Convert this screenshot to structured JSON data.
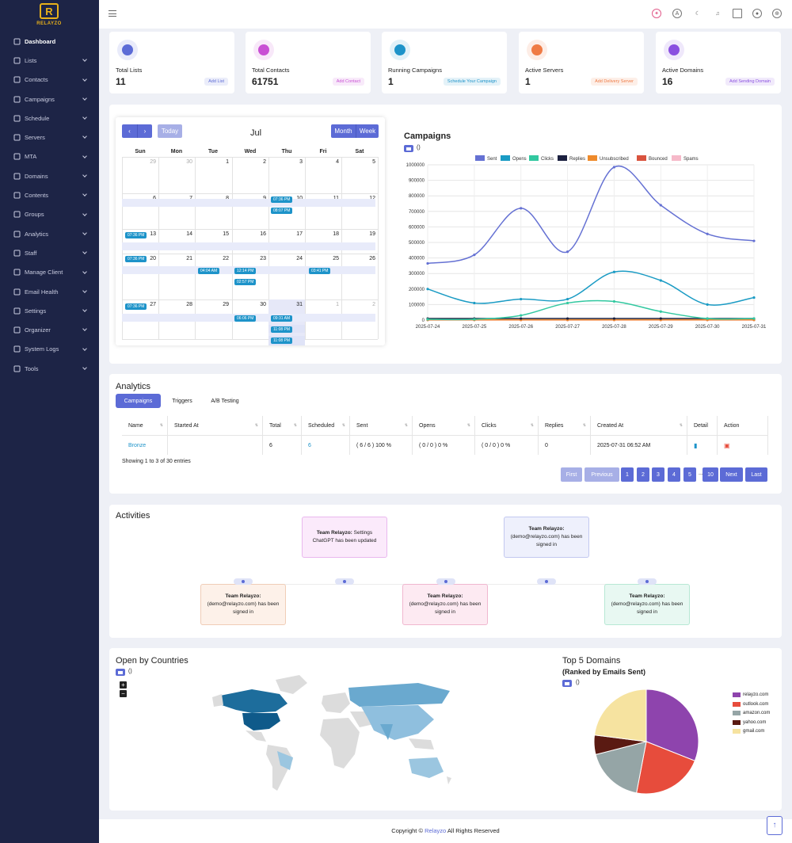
{
  "brand": {
    "logo_letter": "R",
    "name": "RELAYZO",
    "accent": "#5c6bd6"
  },
  "sidebar": {
    "items": [
      {
        "label": "Dashboard",
        "icon": "grid-icon"
      },
      {
        "label": "Lists",
        "icon": "list-icon"
      },
      {
        "label": "Contacts",
        "icon": "contact-card-icon"
      },
      {
        "label": "Campaigns",
        "icon": "send-icon"
      },
      {
        "label": "Schedule",
        "icon": "clock-icon"
      },
      {
        "label": "Servers",
        "icon": "server-icon"
      },
      {
        "label": "MTA",
        "icon": "mta-icon"
      },
      {
        "label": "Domains",
        "icon": "globe-icon"
      },
      {
        "label": "Contents",
        "icon": "content-icon"
      },
      {
        "label": "Groups",
        "icon": "groups-icon"
      },
      {
        "label": "Analytics",
        "icon": "chart-line-icon"
      },
      {
        "label": "Staff",
        "icon": "staff-icon"
      },
      {
        "label": "Manage Client",
        "icon": "users-icon"
      },
      {
        "label": "Email Health",
        "icon": "mail-icon"
      },
      {
        "label": "Settings",
        "icon": "gear-icon"
      },
      {
        "label": "Organizer",
        "icon": "pin-icon"
      },
      {
        "label": "System Logs",
        "icon": "bookmark-icon"
      },
      {
        "label": "Tools",
        "icon": "briefcase-icon"
      }
    ]
  },
  "stats": [
    {
      "label": "Total Lists",
      "value": "11",
      "button": "Add List",
      "color": "#5c6bd6"
    },
    {
      "label": "Total Contacts",
      "value": "61751",
      "button": "Add Contact",
      "color": "#c94fd4"
    },
    {
      "label": "Running Campaigns",
      "value": "1",
      "button": "Schedule Your Campaign",
      "color": "#1d93c9"
    },
    {
      "label": "Active Servers",
      "value": "1",
      "button": "Add Delivery Server",
      "color": "#ef7b45"
    },
    {
      "label": "Active Domains",
      "value": "16",
      "button": "Add Sending Domain",
      "color": "#8a4fe0"
    }
  ],
  "calendar": {
    "title": "Jul",
    "today": "Today",
    "month": "Month",
    "week": "Week",
    "prev": "‹",
    "next": "›",
    "dow": [
      "Sun",
      "Mon",
      "Tue",
      "Wed",
      "Thu",
      "Fri",
      "Sat"
    ],
    "weeks": [
      [
        "29",
        "30",
        "1",
        "2",
        "3",
        "4",
        "5"
      ],
      [
        "6",
        "7",
        "8",
        "9",
        "10",
        "11",
        "12"
      ],
      [
        "13",
        "14",
        "15",
        "16",
        "17",
        "18",
        "19"
      ],
      [
        "20",
        "21",
        "22",
        "23",
        "24",
        "25",
        "26"
      ],
      [
        "27",
        "28",
        "29",
        "30",
        "31",
        "1",
        "2"
      ]
    ],
    "events": [
      "07:36 PM",
      "08:07 PM",
      "07:36 PM",
      "07:36 PM",
      "04:04 AM",
      "12:14 PM",
      "02:57 PM",
      "03:41 PM",
      "07:36 PM",
      "06:06 PM",
      "09:31 AM",
      "11:08 PM",
      "11:08 PM"
    ]
  },
  "campaigns_card": {
    "title": "Campaigns",
    "paren": "()"
  },
  "chart_data": {
    "type": "line",
    "x": [
      "2025-07-24",
      "2025-07-25",
      "2025-07-26",
      "2025-07-27",
      "2025-07-28",
      "2025-07-29",
      "2025-07-30",
      "2025-07-31"
    ],
    "ylim": [
      0,
      1000000
    ],
    "yticks": [
      "0",
      "100000",
      "200000",
      "300000",
      "400000",
      "500000",
      "600000",
      "700000",
      "800000",
      "900000",
      "1000000"
    ],
    "series": [
      {
        "name": "Sent",
        "color": "#6571d3",
        "values": [
          365000,
          420000,
          720000,
          440000,
          985000,
          740000,
          555000,
          510000
        ]
      },
      {
        "name": "Opens",
        "color": "#1a9bc4",
        "values": [
          200000,
          110000,
          135000,
          135000,
          310000,
          255000,
          100000,
          145000
        ]
      },
      {
        "name": "Clicks",
        "color": "#32c8a0",
        "values": [
          5000,
          5000,
          30000,
          110000,
          120000,
          55000,
          10000,
          10000
        ]
      },
      {
        "name": "Replies",
        "color": "#1c2140",
        "values": [
          10000,
          10000,
          10000,
          10000,
          10000,
          10000,
          10000,
          10000
        ]
      },
      {
        "name": "Unsubscribed",
        "color": "#ee8a2b",
        "values": [
          2000,
          2000,
          2000,
          2000,
          2000,
          2000,
          2000,
          2000
        ]
      },
      {
        "name": "Bounced",
        "color": "#d9533e",
        "values": [
          1000,
          1000,
          1000,
          1000,
          1000,
          1000,
          1000,
          1000
        ]
      },
      {
        "name": "Spams",
        "color": "#f6b9c9",
        "values": [
          500,
          500,
          500,
          500,
          500,
          500,
          500,
          500
        ]
      }
    ]
  },
  "analytics": {
    "title": "Analytics",
    "tabs": [
      "Campaigns",
      "Triggers",
      "A/B Testing"
    ],
    "columns": [
      "Name",
      "Started At",
      "Total",
      "Scheduled",
      "Sent",
      "Opens",
      "Clicks",
      "Replies",
      "Created At",
      "Detail",
      "Action"
    ],
    "row": [
      "Bronze",
      "",
      "6",
      "6",
      "( 6 / 6 ) 100 %",
      "( 0 / 0 ) 0 %",
      "( 0 / 0 ) 0 %",
      "0",
      "2025-07-31 06:52 AM",
      "",
      ""
    ],
    "showing": "Showing 1 to 3 of 30 entries",
    "pages": [
      "First",
      "Previous",
      "1",
      "2",
      "3",
      "4",
      "5",
      "...",
      "10",
      "Next",
      "Last"
    ]
  },
  "activities": {
    "title": "Activities",
    "items": [
      {
        "who": "Team Relayzo:",
        "text": "Settings ChatGPT has been updated"
      },
      {
        "who": "Team Relayzo:",
        "text": "(demo@relayzo.com) has been signed in"
      },
      {
        "who": "Team Relayzo:",
        "text": "(demo@relayzo.com) has been signed in"
      },
      {
        "who": "Team Relayzo:",
        "text": "(demo@relayzo.com) has been signed in"
      },
      {
        "who": "Team Relayzo:",
        "text": "(demo@relayzo.com) has been signed in"
      }
    ]
  },
  "map": {
    "title": "Open by Countries",
    "paren": "()",
    "zoom_in": "+",
    "zoom_out": "−"
  },
  "domains": {
    "title": "Top 5 Domains",
    "subtitle": "(Ranked by Emails Sent)",
    "paren": "()",
    "chart": {
      "type": "pie",
      "labels": [
        "relayzo.com",
        "outlook.com",
        "amazon.com",
        "yahoo.com",
        "gmail.com"
      ],
      "values": [
        31,
        22,
        18,
        6,
        23
      ],
      "colors": [
        "#8e44ad",
        "#e74c3c",
        "#95a5a6",
        "#5a1a12",
        "#f6e3a0"
      ]
    }
  },
  "footer": {
    "prefix": "Copyright © ",
    "brand": "Relayzo",
    "suffix": " All Rights Reserved"
  },
  "scroll_top": "↑"
}
